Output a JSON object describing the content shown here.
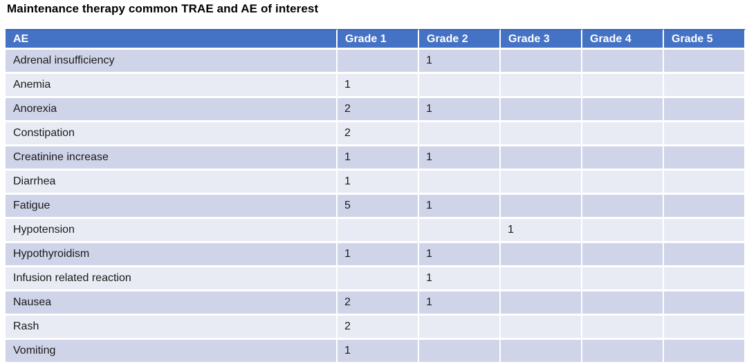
{
  "page": {
    "title": "Maintenance therapy common TRAE and AE of interest"
  },
  "table": {
    "columns": [
      "AE",
      "Grade 1",
      "Grade 2",
      "Grade 3",
      "Grade 4",
      "Grade 5"
    ],
    "rows": [
      [
        "Adrenal insufficiency",
        "",
        "1",
        "",
        "",
        ""
      ],
      [
        "Anemia",
        "1",
        "",
        "",
        "",
        ""
      ],
      [
        "Anorexia",
        "2",
        "1",
        "",
        "",
        ""
      ],
      [
        "Constipation",
        "2",
        "",
        "",
        "",
        ""
      ],
      [
        "Creatinine increase",
        "1",
        "1",
        "",
        "",
        ""
      ],
      [
        "Diarrhea",
        "1",
        "",
        "",
        "",
        ""
      ],
      [
        "Fatigue",
        "5",
        "1",
        "",
        "",
        ""
      ],
      [
        "Hypotension",
        "",
        "",
        "1",
        "",
        ""
      ],
      [
        "Hypothyroidism",
        "1",
        "1",
        "",
        "",
        ""
      ],
      [
        "Infusion related reaction",
        "",
        "1",
        "",
        "",
        ""
      ],
      [
        "Nausea",
        "2",
        "1",
        "",
        "",
        ""
      ],
      [
        "Rash",
        "2",
        "",
        "",
        "",
        ""
      ],
      [
        "Vomiting",
        "1",
        "",
        "",
        "",
        ""
      ]
    ]
  },
  "colors": {
    "header_bg": "#4472C4",
    "header_top_border": "#3A63AE",
    "band_dark": "#CFD4E8",
    "band_light": "#E9EBF4",
    "header_text": "#FFFFFF",
    "body_text": "#1A1A1A"
  }
}
